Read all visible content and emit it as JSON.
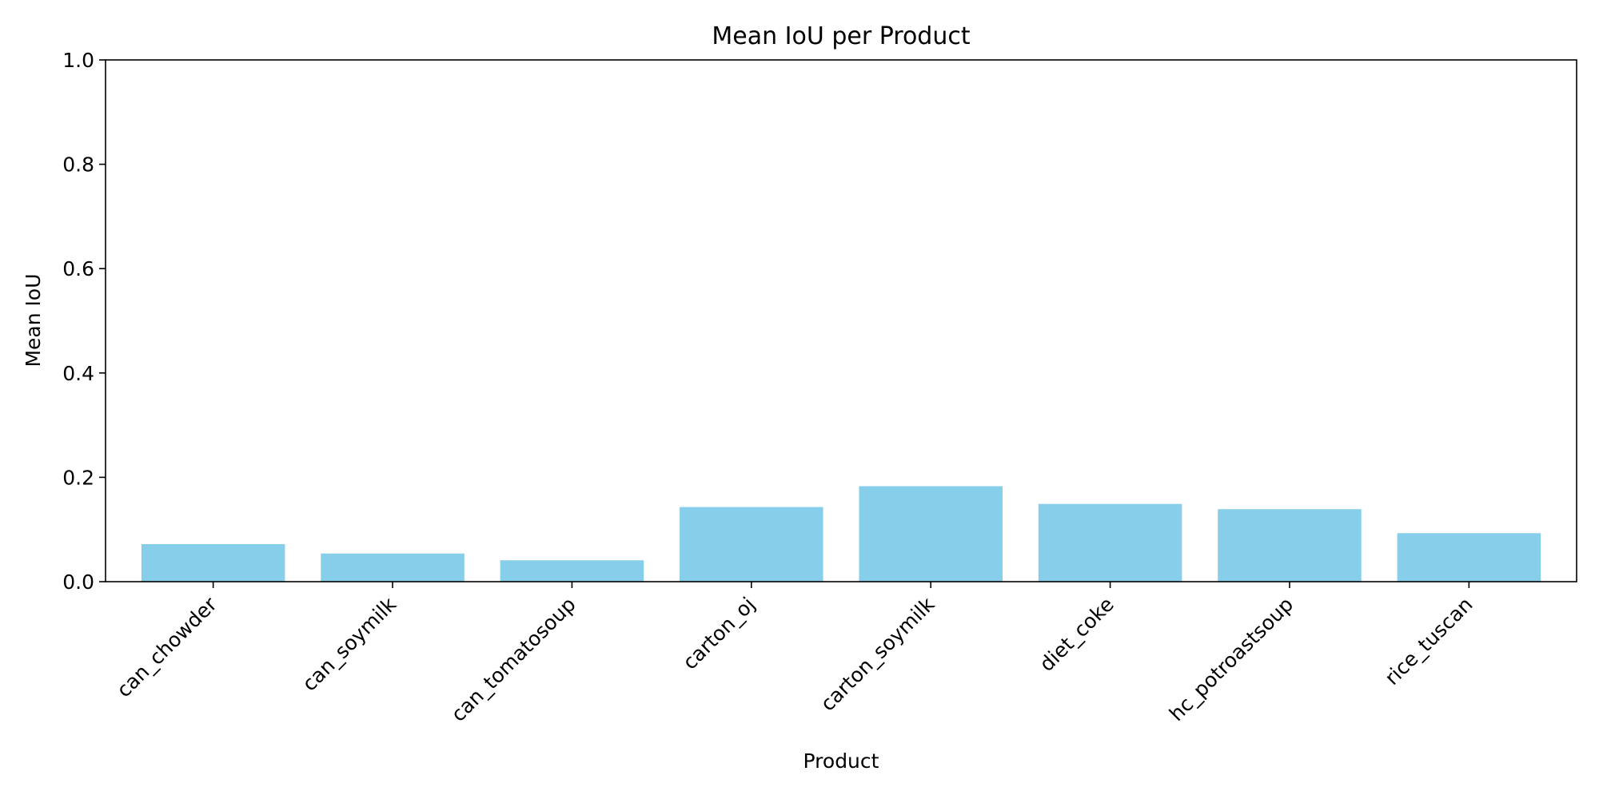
{
  "chart_data": {
    "type": "bar",
    "title": "Mean IoU per Product",
    "xlabel": "Product",
    "ylabel": "Mean IoU",
    "ylim": [
      0,
      1.0
    ],
    "yticks": [
      "0.0",
      "0.2",
      "0.4",
      "0.6",
      "0.8",
      "1.0"
    ],
    "categories": [
      "can_chowder",
      "can_soymilk",
      "can_tomatosoup",
      "carton_oj",
      "carton_soymilk",
      "diet_coke",
      "hc_potroastsoup",
      "rice_tuscan"
    ],
    "values": [
      0.072,
      0.054,
      0.041,
      0.143,
      0.183,
      0.149,
      0.139,
      0.093
    ],
    "bar_color": "#87ceeb",
    "grid": false,
    "legend": "none"
  }
}
